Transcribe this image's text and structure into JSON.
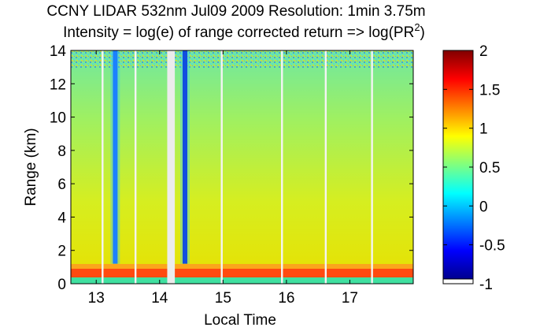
{
  "chart_data": {
    "type": "heatmap",
    "title": "CCNY LIDAR 532nm Jul09 2009 Resolution: 1min 3.75m",
    "subtitle": {
      "text": "Intensity = log(e) of range corrected return => log(PR",
      "superscript": "2",
      "suffix": ")"
    },
    "xlabel": "Local Time",
    "ylabel": "Range (km)",
    "xlim": [
      12.6,
      18.0
    ],
    "ylim": [
      0,
      14
    ],
    "xticks": [
      13,
      14,
      15,
      16,
      17
    ],
    "yticks": [
      0,
      2,
      4,
      6,
      8,
      10,
      12,
      14
    ],
    "colorbar": {
      "min": -1,
      "max": 2,
      "ticks": [
        "2",
        "1.5",
        "1",
        "0.5",
        "0",
        "-0.5",
        "-1"
      ],
      "tick_values": [
        2,
        1.5,
        1,
        0.5,
        0,
        -0.5,
        -1
      ],
      "colormap": "jet"
    },
    "features": {
      "boundary_layer_top_km": 0.9,
      "data_gap_time": [
        14.12,
        14.24
      ],
      "clear_columns_time": [
        13.1,
        13.62,
        14.98,
        15.93,
        16.62,
        17.35
      ],
      "cloud_columns": [
        {
          "time": 13.3,
          "from_km": 1.2,
          "to_km": 14,
          "min_value": -0.4
        },
        {
          "time": 14.4,
          "from_km": 1.2,
          "to_km": 14,
          "min_value": -1.0
        }
      ]
    }
  }
}
